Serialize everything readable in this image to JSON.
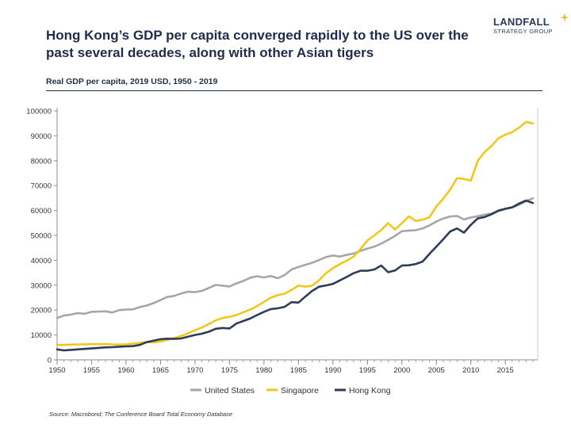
{
  "header": {
    "title": "Hong Kong’s GDP per capita converged rapidly to the US over the past several decades, along with other Asian tigers",
    "logo_name": "LANDFALL",
    "logo_sub": "STRATEGY GROUP"
  },
  "source": "Source: Macrobond; The Conference Board Total Economy Database",
  "chart_data": {
    "type": "line",
    "title": "Real GDP per capita, 2019 USD, 1950 - 2019",
    "xlabel": "",
    "ylabel": "",
    "xlim": [
      1950,
      2019
    ],
    "ylim": [
      0,
      100000
    ],
    "x_ticks": [
      "1950",
      "1955",
      "1960",
      "1965",
      "1970",
      "1975",
      "1980",
      "1985",
      "1990",
      "1995",
      "2000",
      "2005",
      "2010",
      "2015"
    ],
    "y_ticks": [
      "0",
      "10000",
      "20000",
      "30000",
      "40000",
      "50000",
      "60000",
      "70000",
      "80000",
      "90000",
      "100000"
    ],
    "x": [
      1950,
      1951,
      1952,
      1953,
      1954,
      1955,
      1956,
      1957,
      1958,
      1959,
      1960,
      1961,
      1962,
      1963,
      1964,
      1965,
      1966,
      1967,
      1968,
      1969,
      1970,
      1971,
      1972,
      1973,
      1974,
      1975,
      1976,
      1977,
      1978,
      1979,
      1980,
      1981,
      1982,
      1983,
      1984,
      1985,
      1986,
      1987,
      1988,
      1989,
      1990,
      1991,
      1992,
      1993,
      1994,
      1995,
      1996,
      1997,
      1998,
      1999,
      2000,
      2001,
      2002,
      2003,
      2004,
      2005,
      2006,
      2007,
      2008,
      2009,
      2010,
      2011,
      2012,
      2013,
      2014,
      2015,
      2016,
      2017,
      2018,
      2019
    ],
    "series": [
      {
        "name": "United States",
        "color": "#a6a6a6",
        "values": [
          16800,
          17800,
          18200,
          18800,
          18500,
          19300,
          19400,
          19500,
          19000,
          20000,
          20200,
          20300,
          21200,
          21800,
          22800,
          24000,
          25300,
          25700,
          26700,
          27400,
          27200,
          27700,
          28900,
          30100,
          29800,
          29500,
          30700,
          31700,
          33000,
          33600,
          33100,
          33700,
          32800,
          34100,
          36300,
          37300,
          38200,
          39000,
          40100,
          41300,
          41900,
          41500,
          42200,
          42700,
          43800,
          44700,
          45500,
          46700,
          48200,
          49800,
          51700,
          51900,
          52100,
          52800,
          54000,
          55600,
          56800,
          57600,
          57800,
          56400,
          57200,
          57700,
          58300,
          58800,
          59700,
          60600,
          61200,
          62300,
          63800,
          64900
        ]
      },
      {
        "name": "Singapore",
        "color": "#f2c71b",
        "values": [
          6000,
          6000,
          6100,
          6200,
          6200,
          6300,
          6300,
          6300,
          6200,
          6100,
          6200,
          6500,
          6800,
          7200,
          7000,
          7400,
          8000,
          8800,
          9600,
          10700,
          11900,
          13000,
          14400,
          15900,
          16800,
          17300,
          18000,
          19100,
          20200,
          21600,
          23300,
          25000,
          26000,
          26600,
          28100,
          29800,
          29400,
          29800,
          32000,
          34800,
          36800,
          38500,
          39800,
          41500,
          44600,
          48000,
          50000,
          52200,
          54900,
          52400,
          54900,
          57700,
          55800,
          56300,
          57300,
          61700,
          64800,
          68400,
          73000,
          72700,
          72000,
          80000,
          83500,
          86000,
          89000,
          90500,
          91500,
          93300,
          95600,
          95000
        ]
      },
      {
        "name": "Hong Kong",
        "color": "#2e3c59",
        "values": [
          4200,
          3800,
          4000,
          4200,
          4400,
          4600,
          4800,
          5000,
          5100,
          5300,
          5400,
          5500,
          6000,
          7100,
          7700,
          8300,
          8500,
          8400,
          8600,
          9300,
          10000,
          10500,
          11300,
          12500,
          12800,
          12600,
          14600,
          15600,
          16600,
          18000,
          19300,
          20400,
          20700,
          21300,
          23200,
          23000,
          25400,
          27700,
          29400,
          29900,
          30500,
          31900,
          33300,
          34800,
          35800,
          35800,
          36300,
          37900,
          35200,
          35900,
          37900,
          38000,
          38500,
          39500,
          42600,
          45500,
          48500,
          51600,
          52800,
          51100,
          54200,
          56800,
          57400,
          58500,
          60000,
          60700,
          61300,
          62800,
          64000,
          63000
        ]
      }
    ]
  }
}
